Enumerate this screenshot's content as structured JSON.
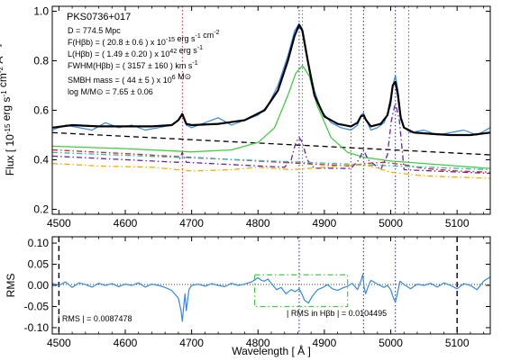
{
  "chart_data": [
    {
      "type": "line",
      "panel": "top",
      "object_label": "PKS0736+017",
      "ylabel": "Flux [ 10^-15 erg s^-1 cm^-2 Å^-1 ]",
      "xlim": [
        4490,
        5150
      ],
      "ylim": [
        0.18,
        1.02
      ],
      "x_ticks": [
        "4500",
        "4600",
        "4700",
        "4800",
        "4900",
        "5000",
        "5100"
      ],
      "y_ticks": [
        "0.2",
        "0.4",
        "0.6",
        "0.8",
        "1.0"
      ],
      "annotations": [
        "D =   774.5 Mpc",
        "F(Hβb) = (    20.8 ±    0.6 ) x 10^-15 erg s^-1 cm^-2",
        "L(Hβb) = (    1.49 ±  0.20 ) x 10^42 erg s^-1",
        "FWHM(Hβb) = (  3157 ±    160 ) km s^-1",
        "SMBH mass = (    44 ±      5 ) x 10^6 M⊙",
        "log M/M⊙ =    7.65 ±  0.06"
      ],
      "vertical_lines": [
        {
          "x": 4686,
          "color": "#dd2222",
          "style": "dotted"
        },
        {
          "x": 4862,
          "color": "#2222cc",
          "style": "dotted"
        },
        {
          "x": 4867,
          "color": "#22aa22",
          "style": "dotted"
        },
        {
          "x": 4940,
          "color": "#dd2222",
          "style": "dotted"
        },
        {
          "x": 4959,
          "color": "#2222cc",
          "style": "dotted"
        },
        {
          "x": 5007,
          "color": "#2222cc",
          "style": "dotted"
        },
        {
          "x": 5027,
          "color": "#dd2222",
          "style": "dotted"
        }
      ],
      "series": [
        {
          "color": "#3388ee",
          "style": "solid",
          "kind": "observed",
          "x": [
            4490,
            4510,
            4530,
            4550,
            4570,
            4590,
            4610,
            4630,
            4650,
            4670,
            4680,
            4686,
            4692,
            4700,
            4720,
            4740,
            4760,
            4780,
            4800,
            4815,
            4830,
            4845,
            4855,
            4862,
            4867,
            4875,
            4885,
            4895,
            4910,
            4925,
            4940,
            4950,
            4955,
            4959,
            4963,
            4970,
            4980,
            4990,
            5000,
            5003,
            5007,
            5011,
            5015,
            5020,
            5030,
            5050,
            5070,
            5090,
            5110,
            5130,
            5150
          ],
          "y": [
            0.52,
            0.54,
            0.53,
            0.52,
            0.55,
            0.53,
            0.54,
            0.52,
            0.53,
            0.54,
            0.56,
            0.58,
            0.54,
            0.53,
            0.55,
            0.57,
            0.54,
            0.56,
            0.58,
            0.62,
            0.7,
            0.82,
            0.92,
            0.95,
            0.93,
            0.8,
            0.68,
            0.6,
            0.55,
            0.53,
            0.52,
            0.54,
            0.58,
            0.59,
            0.56,
            0.52,
            0.53,
            0.55,
            0.62,
            0.7,
            0.74,
            0.68,
            0.58,
            0.53,
            0.51,
            0.52,
            0.5,
            0.51,
            0.52,
            0.5,
            0.53
          ]
        },
        {
          "color": "#000000",
          "style": "solid",
          "kind": "model",
          "x": [
            4490,
            4520,
            4560,
            4600,
            4640,
            4670,
            4680,
            4686,
            4692,
            4700,
            4740,
            4780,
            4810,
            4830,
            4845,
            4855,
            4862,
            4867,
            4875,
            4885,
            4900,
            4920,
            4940,
            4950,
            4955,
            4959,
            4963,
            4970,
            4985,
            4995,
            5000,
            5003,
            5007,
            5011,
            5015,
            5020,
            5035,
            5060,
            5090,
            5120,
            5150
          ],
          "y": [
            0.53,
            0.54,
            0.535,
            0.535,
            0.535,
            0.54,
            0.56,
            0.585,
            0.545,
            0.54,
            0.545,
            0.56,
            0.6,
            0.68,
            0.8,
            0.9,
            0.945,
            0.92,
            0.8,
            0.66,
            0.575,
            0.545,
            0.535,
            0.55,
            0.575,
            0.58,
            0.56,
            0.535,
            0.545,
            0.58,
            0.64,
            0.7,
            0.715,
            0.66,
            0.57,
            0.53,
            0.51,
            0.505,
            0.5,
            0.5,
            0.51
          ]
        },
        {
          "color": "#000000",
          "style": "dashed",
          "kind": "power-law continuum",
          "x": [
            4490,
            5150
          ],
          "y": [
            0.51,
            0.42
          ]
        },
        {
          "color": "#44cc44",
          "style": "solid",
          "kind": "broad Hβ",
          "x": [
            4490,
            4600,
            4700,
            4760,
            4800,
            4825,
            4845,
            4857,
            4867,
            4877,
            4889,
            4910,
            4935,
            4960,
            5000,
            5050,
            5100,
            5150
          ],
          "y": [
            0.455,
            0.445,
            0.432,
            0.44,
            0.47,
            0.53,
            0.66,
            0.75,
            0.78,
            0.74,
            0.62,
            0.49,
            0.43,
            0.41,
            0.395,
            0.385,
            0.375,
            0.365
          ]
        },
        {
          "color": "#6622aa",
          "style": "dashdot",
          "kind": "narrow lines",
          "x": [
            4490,
            4680,
            4686,
            4692,
            4840,
            4850,
            4857,
            4862,
            4867,
            4874,
            4885,
            4940,
            4952,
            4959,
            4966,
            4985,
            4995,
            5001,
            5007,
            5013,
            5020,
            5150
          ],
          "y": [
            0.415,
            0.39,
            0.43,
            0.39,
            0.37,
            0.4,
            0.47,
            0.49,
            0.47,
            0.4,
            0.366,
            0.365,
            0.4,
            0.44,
            0.4,
            0.36,
            0.42,
            0.56,
            0.63,
            0.56,
            0.36,
            0.345
          ]
        },
        {
          "color": "#dd2222",
          "style": "dashdot",
          "kind": "Fe II",
          "x": [
            4490,
            4600,
            4700,
            4800,
            4900,
            4940,
            4960,
            4990,
            5020,
            5050,
            5100,
            5150
          ],
          "y": [
            0.44,
            0.425,
            0.41,
            0.395,
            0.38,
            0.375,
            0.385,
            0.39,
            0.38,
            0.365,
            0.355,
            0.35
          ]
        },
        {
          "color": "#22bbbb",
          "style": "dashdot",
          "kind": "component",
          "x": [
            4490,
            5150
          ],
          "y": [
            0.43,
            0.36
          ]
        },
        {
          "color": "#ffaa00",
          "style": "dashdot",
          "kind": "host galaxy",
          "x": [
            4490,
            4560,
            4640,
            4700,
            4760,
            4800,
            4850,
            4900,
            4940,
            4970,
            5000,
            5050,
            5100,
            5150
          ],
          "y": [
            0.385,
            0.375,
            0.37,
            0.355,
            0.36,
            0.37,
            0.36,
            0.37,
            0.38,
            0.375,
            0.35,
            0.335,
            0.33,
            0.325
          ]
        }
      ]
    },
    {
      "type": "line",
      "panel": "bottom",
      "xlabel": "Wavelength [ Å ]",
      "ylabel": "RMS",
      "xlim": [
        4490,
        5150
      ],
      "ylim": [
        -0.115,
        0.115
      ],
      "x_ticks": [
        "4500",
        "4600",
        "4700",
        "4800",
        "4900",
        "5000",
        "5100"
      ],
      "y_ticks": [
        "-0.10",
        "-0.05",
        "0.00",
        "0.05",
        "0.10"
      ],
      "annotations": [
        "| RMS | =   0.0087478",
        "| RMS in Hβb | =  0.0104495"
      ],
      "vertical_lines": [
        {
          "x": 4500,
          "color": "#000000",
          "style": "dashed"
        },
        {
          "x": 4862,
          "color": "#2222cc",
          "style": "dotted"
        },
        {
          "x": 4959,
          "color": "#2222cc",
          "style": "dotted"
        },
        {
          "x": 5007,
          "color": "#2222cc",
          "style": "dotted"
        },
        {
          "x": 5100,
          "color": "#000000",
          "style": "dashed"
        }
      ],
      "region_box": {
        "x": [
          4795,
          4935
        ],
        "y": [
          -0.05,
          0.025
        ],
        "color": "#44cc44",
        "style": "dashdot"
      },
      "series": [
        {
          "color": "#3388ee",
          "style": "solid",
          "kind": "residual",
          "x": [
            4490,
            4500,
            4510,
            4520,
            4530,
            4540,
            4550,
            4560,
            4570,
            4580,
            4590,
            4600,
            4610,
            4620,
            4630,
            4640,
            4650,
            4660,
            4670,
            4680,
            4684,
            4686,
            4688,
            4690,
            4692,
            4696,
            4700,
            4710,
            4720,
            4730,
            4740,
            4750,
            4760,
            4770,
            4780,
            4790,
            4800,
            4805,
            4810,
            4815,
            4820,
            4828,
            4835,
            4842,
            4850,
            4856,
            4862,
            4866,
            4870,
            4876,
            4882,
            4890,
            4898,
            4905,
            4912,
            4920,
            4928,
            4935,
            4942,
            4950,
            4955,
            4958,
            4960,
            4962,
            4966,
            4970,
            4980,
            4990,
            4995,
            5000,
            5004,
            5007,
            5010,
            5014,
            5020,
            5030,
            5040,
            5050,
            5060,
            5070,
            5080,
            5090,
            5100,
            5110,
            5120,
            5130,
            5140,
            5150
          ],
          "y": [
            0.005,
            0.0,
            0.008,
            -0.005,
            0.006,
            0.002,
            -0.004,
            0.005,
            0.0,
            0.004,
            -0.003,
            0.003,
            0.0,
            0.006,
            -0.004,
            0.003,
            0.0,
            -0.005,
            -0.012,
            -0.03,
            -0.06,
            -0.085,
            -0.05,
            -0.02,
            -0.06,
            -0.01,
            0.0,
            0.003,
            -0.002,
            0.004,
            0.0,
            -0.003,
            0.005,
            0.0,
            0.003,
            0.008,
            0.018,
            0.012,
            0.01,
            0.015,
            0.005,
            -0.01,
            -0.005,
            -0.02,
            -0.01,
            -0.015,
            -0.008,
            -0.02,
            -0.035,
            -0.042,
            -0.025,
            -0.01,
            -0.005,
            0.002,
            -0.008,
            -0.012,
            -0.006,
            -0.002,
            0.005,
            -0.01,
            0.01,
            0.026,
            -0.006,
            -0.02,
            -0.003,
            0.012,
            0.003,
            -0.005,
            0.0,
            -0.01,
            -0.03,
            -0.04,
            -0.02,
            0.01,
            0.002,
            -0.008,
            0.003,
            0.0,
            0.005,
            -0.004,
            0.006,
            0.0,
            -0.008,
            0.004,
            0.0,
            -0.01,
            0.01,
            0.02
          ]
        }
      ]
    }
  ]
}
